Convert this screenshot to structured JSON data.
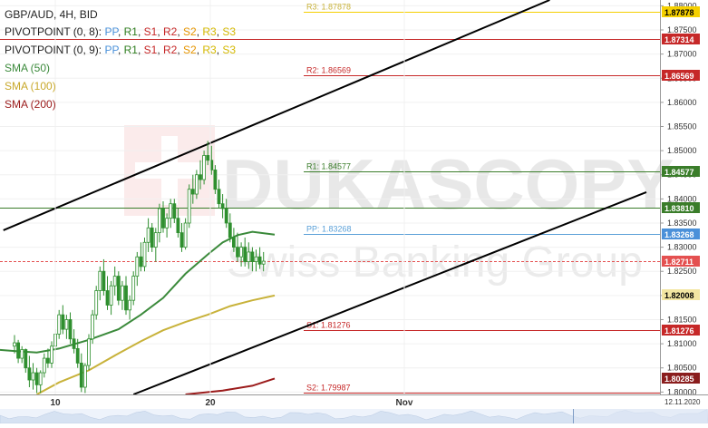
{
  "legend": {
    "symbol_line": "GBP/AUD, 4H, BID",
    "pivot_a": {
      "prefix": "PIVOTPOINT (0, 8): ",
      "PP": "PP",
      "R1": "R1",
      "S1": "S1",
      "R2": "R2",
      "S2": "S2",
      "R3": "R3",
      "S3": "S3"
    },
    "pivot_b": {
      "prefix": "PIVOTPOINT (0, 9): ",
      "PP": "PP",
      "R1": "R1",
      "S1": "S1",
      "R2": "R2",
      "S2": "S2",
      "R3": "R3",
      "S3": "S3"
    },
    "sma50": "SMA (50)",
    "sma100": "SMA (100)",
    "sma200": "SMA (200)"
  },
  "watermark": {
    "brand": "DUKASCOPY",
    "sub": "Swiss Banking Group"
  },
  "corner_date": "12.11.2020",
  "colors": {
    "pp": "#4a90d9",
    "r1": "#2e7d1e",
    "s1": "#c62828",
    "r2": "#c62828",
    "s2": "#e69500",
    "r3": "#d4b800",
    "s3": "#d4b800",
    "sma50": "#3b8a3b",
    "sma100": "#c8b23a",
    "sma200": "#9b1b1b",
    "candle": "#2f8f2f",
    "legend_text": "#222222",
    "channel": "#000000",
    "current_price": "#e45050",
    "level_r3": "#f5d000",
    "level_red": "#c62828",
    "level_green": "#3a7d2a",
    "level_pp": "#5aa0d8",
    "level_yellow": "#c8b23a",
    "level_darkred": "#8a1d1d"
  },
  "chart_data": {
    "type": "candlestick",
    "symbol": "GBP/AUD",
    "timeframe": "4H",
    "side": "BID",
    "ylim": [
      1.7995,
      1.8812
    ],
    "y_ticks": [
      "1.88000",
      "1.87500",
      "1.87000",
      "1.86500",
      "1.86000",
      "1.85500",
      "1.85000",
      "1.84500",
      "1.84000",
      "1.83500",
      "1.83000",
      "1.82500",
      "1.82000",
      "1.81500",
      "1.81000",
      "1.80500",
      "1.80000"
    ],
    "x_ticks": [
      {
        "label": "10",
        "bar": 0
      },
      {
        "label": "20",
        "bar": 40
      },
      {
        "label": "Nov",
        "bar": 90
      }
    ],
    "bar_count": 170,
    "levels": [
      {
        "name": "R3",
        "label": "R3: 1.87878",
        "value": 1.87878,
        "color": "level_r3",
        "text_color": "level_yellow",
        "box_label": "1.87878",
        "box_bg": "#f5d000",
        "box_fg": "#000000",
        "from_bar": 67
      },
      {
        "name": "level",
        "label": "",
        "value": 1.87314,
        "color": "level_red",
        "box_label": "1.87314",
        "box_bg": "#c62828",
        "box_fg": "#ffffff",
        "from_bar": 0
      },
      {
        "name": "R2",
        "label": "R2: 1.86569",
        "value": 1.86569,
        "color": "level_red",
        "text_color": "level_red",
        "box_label": "1.86569",
        "box_bg": "#c62828",
        "box_fg": "#ffffff",
        "from_bar": 67
      },
      {
        "name": "R1",
        "label": "R1: 1.84577",
        "value": 1.84577,
        "color": "level_green",
        "text_color": "level_green",
        "box_label": "1.84577",
        "box_bg": "#3a7d2a",
        "box_fg": "#ffffff",
        "from_bar": 67
      },
      {
        "name": "level",
        "label": "",
        "value": 1.8381,
        "color": "level_green",
        "box_label": "1.83810",
        "box_bg": "#3a7d2a",
        "box_fg": "#ffffff",
        "from_bar": 0
      },
      {
        "name": "PP",
        "label": "PP: 1.83268",
        "value": 1.83268,
        "color": "level_pp",
        "text_color": "level_pp",
        "box_label": "1.83268",
        "box_bg": "#4a90d9",
        "box_fg": "#ffffff",
        "from_bar": 67
      },
      {
        "name": "current",
        "label": "",
        "value": 1.82711,
        "color": "current_price",
        "box_label": "1.82711",
        "box_bg": "#e45050",
        "box_fg": "#ffffff",
        "from_bar": 0,
        "dashed": true
      },
      {
        "name": "SMA100",
        "label": "",
        "value": 1.82008,
        "color": "level_yellow",
        "box_label": "1.82008",
        "box_bg": "#f3e6a2",
        "box_fg": "#000000",
        "from_bar": -1
      },
      {
        "name": "S1",
        "label": "S1: 1.81276",
        "value": 1.81276,
        "color": "level_red",
        "text_color": "level_red",
        "box_label": "1.81276",
        "box_bg": "#c62828",
        "box_fg": "#ffffff",
        "from_bar": 67
      },
      {
        "name": "SMA200",
        "label": "",
        "value": 1.80285,
        "color": "level_darkred",
        "box_label": "1.80285",
        "box_bg": "#8a1d1d",
        "box_fg": "#ffffff",
        "from_bar": -1
      },
      {
        "name": "S2",
        "label": "S2: 1.79987",
        "value": 1.79987,
        "color": "level_red",
        "text_color": "level_red",
        "box_label": "",
        "from_bar": 67
      }
    ],
    "channel": [
      {
        "name": "upper",
        "from": {
          "bar": -3,
          "value": 1.8335
        },
        "to": {
          "bar": 144,
          "value": 1.8812
        }
      },
      {
        "name": "lower",
        "from": {
          "bar": 32,
          "value": 1.7995
        },
        "to": {
          "bar": 170,
          "value": 1.8414
        }
      }
    ],
    "sma50": [
      [
        -12,
        1.8092
      ],
      [
        0,
        1.8085
      ],
      [
        6,
        1.8082
      ],
      [
        12,
        1.809
      ],
      [
        20,
        1.8108
      ],
      [
        28,
        1.813
      ],
      [
        34,
        1.816
      ],
      [
        40,
        1.8195
      ],
      [
        46,
        1.8245
      ],
      [
        52,
        1.8285
      ],
      [
        56,
        1.831
      ],
      [
        60,
        1.8325
      ],
      [
        64,
        1.8332
      ],
      [
        70,
        1.8326
      ]
    ],
    "sma100": [
      [
        6,
        1.7995
      ],
      [
        12,
        1.802
      ],
      [
        20,
        1.8045
      ],
      [
        28,
        1.808
      ],
      [
        34,
        1.8105
      ],
      [
        40,
        1.8128
      ],
      [
        46,
        1.8145
      ],
      [
        52,
        1.816
      ],
      [
        58,
        1.8178
      ],
      [
        64,
        1.819
      ],
      [
        70,
        1.82
      ]
    ],
    "sma200": [
      [
        46,
        1.7995
      ],
      [
        56,
        1.8003
      ],
      [
        64,
        1.8013
      ],
      [
        70,
        1.8028
      ]
    ],
    "candles": [
      [
        1.8095,
        1.8118,
        1.808,
        1.8102
      ],
      [
        1.8102,
        1.8108,
        1.806,
        1.807
      ],
      [
        1.807,
        1.8095,
        1.806,
        1.8088
      ],
      [
        1.8088,
        1.809,
        1.804,
        1.805
      ],
      [
        1.805,
        1.8075,
        1.801,
        1.8025
      ],
      [
        1.8025,
        1.806,
        1.8005,
        1.804
      ],
      [
        1.804,
        1.805,
        1.7998,
        1.8015
      ],
      [
        1.8015,
        1.8045,
        1.7998,
        1.804
      ],
      [
        1.804,
        1.808,
        1.803,
        1.807
      ],
      [
        1.807,
        1.809,
        1.805,
        1.806
      ],
      [
        1.806,
        1.8105,
        1.805,
        1.8095
      ],
      [
        1.8095,
        1.813,
        1.8085,
        1.812
      ],
      [
        1.812,
        1.817,
        1.811,
        1.816
      ],
      [
        1.816,
        1.818,
        1.812,
        1.813
      ],
      [
        1.813,
        1.816,
        1.811,
        1.815
      ],
      [
        1.815,
        1.8165,
        1.81,
        1.811
      ],
      [
        1.811,
        1.813,
        1.808,
        1.809
      ],
      [
        1.809,
        1.811,
        1.805,
        1.806
      ],
      [
        1.806,
        1.808,
        1.8,
        1.801
      ],
      [
        1.801,
        1.806,
        1.7998,
        1.8055
      ],
      [
        1.8055,
        1.812,
        1.8045,
        1.811
      ],
      [
        1.811,
        1.817,
        1.81,
        1.816
      ],
      [
        1.816,
        1.822,
        1.815,
        1.821
      ],
      [
        1.821,
        1.826,
        1.819,
        1.825
      ],
      [
        1.825,
        1.8275,
        1.82,
        1.821
      ],
      [
        1.821,
        1.824,
        1.817,
        1.818
      ],
      [
        1.818,
        1.823,
        1.816,
        1.822
      ],
      [
        1.822,
        1.826,
        1.82,
        1.824
      ],
      [
        1.824,
        1.825,
        1.818,
        1.819
      ],
      [
        1.819,
        1.823,
        1.817,
        1.822
      ],
      [
        1.822,
        1.824,
        1.816,
        1.817
      ],
      [
        1.817,
        1.82,
        1.815,
        1.819
      ],
      [
        1.819,
        1.825,
        1.818,
        1.824
      ],
      [
        1.824,
        1.829,
        1.822,
        1.828
      ],
      [
        1.828,
        1.831,
        1.825,
        1.826
      ],
      [
        1.826,
        1.832,
        1.825,
        1.831
      ],
      [
        1.831,
        1.836,
        1.829,
        1.834
      ],
      [
        1.834,
        1.835,
        1.829,
        1.83
      ],
      [
        1.83,
        1.834,
        1.827,
        1.833
      ],
      [
        1.833,
        1.839,
        1.831,
        1.838
      ],
      [
        1.838,
        1.8395,
        1.833,
        1.834
      ],
      [
        1.834,
        1.837,
        1.832,
        1.836
      ],
      [
        1.836,
        1.84,
        1.834,
        1.839
      ],
      [
        1.839,
        1.84,
        1.835,
        1.836
      ],
      [
        1.836,
        1.838,
        1.832,
        1.833
      ],
      [
        1.833,
        1.835,
        1.829,
        1.83
      ],
      [
        1.83,
        1.836,
        1.8295,
        1.835
      ],
      [
        1.835,
        1.843,
        1.834,
        1.842
      ],
      [
        1.842,
        1.845,
        1.839,
        1.841
      ],
      [
        1.841,
        1.846,
        1.84,
        1.845
      ],
      [
        1.845,
        1.848,
        1.842,
        1.844
      ],
      [
        1.844,
        1.85,
        1.843,
        1.849
      ],
      [
        1.849,
        1.852,
        1.847,
        1.848
      ],
      [
        1.848,
        1.851,
        1.845,
        1.846
      ],
      [
        1.846,
        1.847,
        1.841,
        1.842
      ],
      [
        1.842,
        1.844,
        1.838,
        1.839
      ],
      [
        1.839,
        1.841,
        1.836,
        1.838
      ],
      [
        1.838,
        1.84,
        1.834,
        1.835
      ],
      [
        1.835,
        1.837,
        1.831,
        1.832
      ],
      [
        1.832,
        1.834,
        1.829,
        1.83
      ],
      [
        1.83,
        1.833,
        1.827,
        1.828
      ],
      [
        1.828,
        1.831,
        1.826,
        1.83
      ],
      [
        1.83,
        1.832,
        1.826,
        1.827
      ],
      [
        1.827,
        1.831,
        1.8255,
        1.829
      ],
      [
        1.829,
        1.83,
        1.825,
        1.827
      ],
      [
        1.827,
        1.8295,
        1.825,
        1.828
      ],
      [
        1.828,
        1.83,
        1.8255,
        1.8265
      ],
      [
        1.8265,
        1.829,
        1.825,
        1.8271
      ]
    ]
  }
}
